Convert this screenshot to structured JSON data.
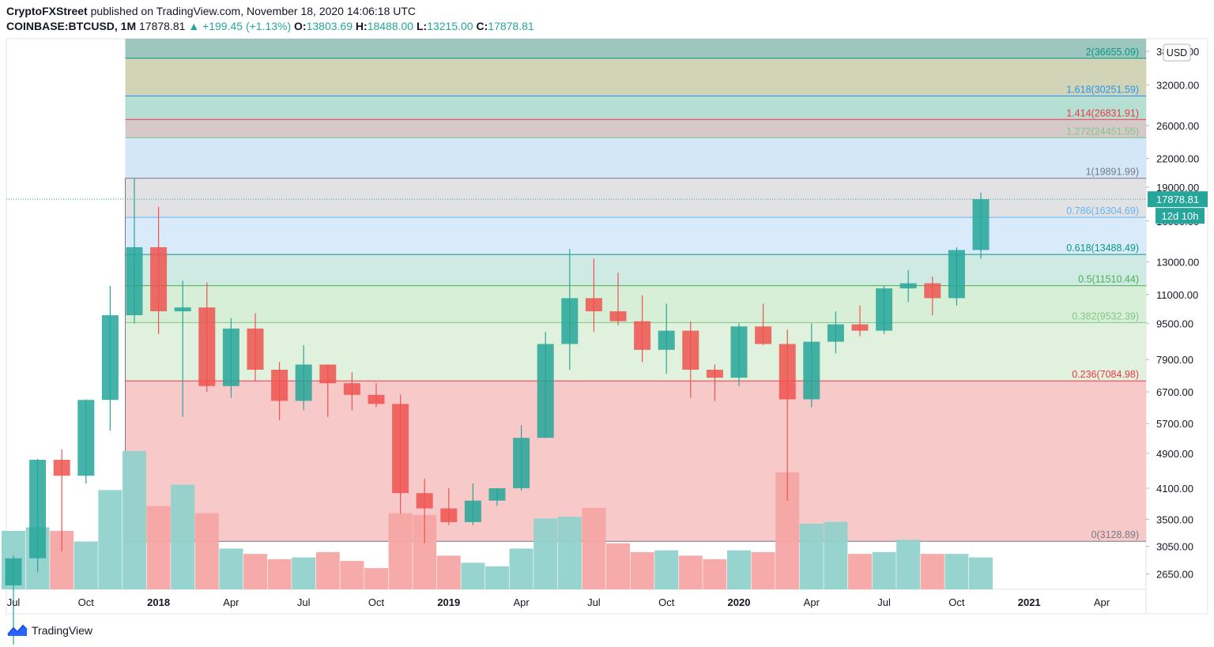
{
  "header": {
    "publisher": "CryptoFXStreet",
    "published_text": "published on TradingView.com, November 18, 2020 14:06:18 UTC",
    "symbol": "COINBASE:BTCUSD, 1M",
    "last": "17878.81",
    "change": "+199.45 (+1.13%)",
    "open_label": "O:",
    "open": "13803.69",
    "high_label": "H:",
    "high": "18488.00",
    "low_label": "L:",
    "low": "13215.00",
    "close_label": "C:",
    "close": "17878.81"
  },
  "footer": {
    "brand": "TradingView",
    "logo_icon": "tradingview-logo-icon"
  },
  "price_axis": {
    "currency": "USD",
    "current_price": "17878.81",
    "countdown": "12d 10h",
    "ticks": [
      "38000.00",
      "32000.00",
      "26000.00",
      "22000.00",
      "19000.00",
      "16000.00",
      "13000.00",
      "11000.00",
      "9500.00",
      "7900.00",
      "6700.00",
      "5700.00",
      "4900.00",
      "4100.00",
      "3500.00",
      "3050.00",
      "2650.00"
    ]
  },
  "colors": {
    "up": "#26a69a",
    "down": "#ef5350",
    "up_volume": "#92d2cc",
    "down_volume": "#f6a6a5",
    "axis_text": "#131722"
  },
  "chart_data": {
    "type": "candlestick",
    "scale": "log",
    "ylim": [
      2450,
      40500
    ],
    "x_axis_labels": [
      {
        "i": 0,
        "label": "Jul"
      },
      {
        "i": 3,
        "label": "Oct"
      },
      {
        "i": 6,
        "label": "2018"
      },
      {
        "i": 9,
        "label": "Apr"
      },
      {
        "i": 12,
        "label": "Jul"
      },
      {
        "i": 15,
        "label": "Oct"
      },
      {
        "i": 18,
        "label": "2019"
      },
      {
        "i": 21,
        "label": "Apr"
      },
      {
        "i": 24,
        "label": "Jul"
      },
      {
        "i": 27,
        "label": "Oct"
      },
      {
        "i": 30,
        "label": "2020"
      },
      {
        "i": 33,
        "label": "Apr"
      },
      {
        "i": 36,
        "label": "Jul"
      },
      {
        "i": 39,
        "label": "Oct"
      },
      {
        "i": 42,
        "label": "2021"
      },
      {
        "i": 45,
        "label": "Apr"
      }
    ],
    "candles": [
      {
        "month": "2017-07",
        "o": 2500,
        "h": 2920,
        "l": 1850,
        "c": 2870,
        "v": 0.33
      },
      {
        "month": "2017-08",
        "o": 2870,
        "h": 4760,
        "l": 2670,
        "c": 4740,
        "v": 0.35
      },
      {
        "month": "2017-09",
        "o": 4740,
        "h": 5000,
        "l": 2970,
        "c": 4370,
        "v": 0.33
      },
      {
        "month": "2017-10",
        "o": 4370,
        "h": 6450,
        "l": 4200,
        "c": 6430,
        "v": 0.27
      },
      {
        "month": "2017-11",
        "o": 6430,
        "h": 11500,
        "l": 5500,
        "c": 9900,
        "v": 0.56
      },
      {
        "month": "2017-12",
        "o": 9900,
        "h": 19890,
        "l": 9500,
        "c": 14000,
        "v": 0.78
      },
      {
        "month": "2018-01",
        "o": 14000,
        "h": 17200,
        "l": 9000,
        "c": 10100,
        "v": 0.47
      },
      {
        "month": "2018-02",
        "o": 10100,
        "h": 11800,
        "l": 5900,
        "c": 10300,
        "v": 0.59
      },
      {
        "month": "2018-03",
        "o": 10300,
        "h": 11700,
        "l": 6700,
        "c": 6900,
        "v": 0.43
      },
      {
        "month": "2018-04",
        "o": 6900,
        "h": 9750,
        "l": 6500,
        "c": 9250,
        "v": 0.23
      },
      {
        "month": "2018-05",
        "o": 9250,
        "h": 10000,
        "l": 7100,
        "c": 7500,
        "v": 0.2
      },
      {
        "month": "2018-06",
        "o": 7500,
        "h": 7800,
        "l": 5800,
        "c": 6400,
        "v": 0.17
      },
      {
        "month": "2018-07",
        "o": 6400,
        "h": 8500,
        "l": 6100,
        "c": 7700,
        "v": 0.18
      },
      {
        "month": "2018-08",
        "o": 7700,
        "h": 7700,
        "l": 5900,
        "c": 7000,
        "v": 0.21
      },
      {
        "month": "2018-09",
        "o": 7000,
        "h": 7400,
        "l": 6100,
        "c": 6600,
        "v": 0.16
      },
      {
        "month": "2018-10",
        "o": 6600,
        "h": 7000,
        "l": 6200,
        "c": 6300,
        "v": 0.12
      },
      {
        "month": "2018-11",
        "o": 6300,
        "h": 6600,
        "l": 3600,
        "c": 4000,
        "v": 0.43
      },
      {
        "month": "2018-12",
        "o": 4000,
        "h": 4300,
        "l": 3100,
        "c": 3700,
        "v": 0.42
      },
      {
        "month": "2019-01",
        "o": 3700,
        "h": 4100,
        "l": 3400,
        "c": 3450,
        "v": 0.19
      },
      {
        "month": "2019-02",
        "o": 3450,
        "h": 4200,
        "l": 3400,
        "c": 3850,
        "v": 0.15
      },
      {
        "month": "2019-03",
        "o": 3850,
        "h": 4100,
        "l": 3750,
        "c": 4100,
        "v": 0.13
      },
      {
        "month": "2019-04",
        "o": 4100,
        "h": 5650,
        "l": 4050,
        "c": 5300,
        "v": 0.23
      },
      {
        "month": "2019-05",
        "o": 5300,
        "h": 9100,
        "l": 5300,
        "c": 8550,
        "v": 0.4
      },
      {
        "month": "2019-06",
        "o": 8550,
        "h": 13880,
        "l": 7500,
        "c": 10800,
        "v": 0.41
      },
      {
        "month": "2019-07",
        "o": 10800,
        "h": 13200,
        "l": 9100,
        "c": 10100,
        "v": 0.46
      },
      {
        "month": "2019-08",
        "o": 10100,
        "h": 12300,
        "l": 9400,
        "c": 9600,
        "v": 0.26
      },
      {
        "month": "2019-09",
        "o": 9600,
        "h": 10950,
        "l": 7800,
        "c": 8300,
        "v": 0.21
      },
      {
        "month": "2019-10",
        "o": 8300,
        "h": 10500,
        "l": 7350,
        "c": 9150,
        "v": 0.22
      },
      {
        "month": "2019-11",
        "o": 9150,
        "h": 9600,
        "l": 6500,
        "c": 7500,
        "v": 0.19
      },
      {
        "month": "2019-12",
        "o": 7500,
        "h": 7700,
        "l": 6400,
        "c": 7200,
        "v": 0.17
      },
      {
        "month": "2020-01",
        "o": 7200,
        "h": 9500,
        "l": 6900,
        "c": 9350,
        "v": 0.22
      },
      {
        "month": "2020-02",
        "o": 9350,
        "h": 10500,
        "l": 8500,
        "c": 8550,
        "v": 0.21
      },
      {
        "month": "2020-03",
        "o": 8550,
        "h": 9200,
        "l": 3850,
        "c": 6450,
        "v": 0.66
      },
      {
        "month": "2020-04",
        "o": 6450,
        "h": 9500,
        "l": 6200,
        "c": 8650,
        "v": 0.37
      },
      {
        "month": "2020-05",
        "o": 8650,
        "h": 10100,
        "l": 8150,
        "c": 9450,
        "v": 0.38
      },
      {
        "month": "2020-06",
        "o": 9450,
        "h": 10400,
        "l": 8900,
        "c": 9150,
        "v": 0.2
      },
      {
        "month": "2020-07",
        "o": 9150,
        "h": 11500,
        "l": 9000,
        "c": 11350,
        "v": 0.21
      },
      {
        "month": "2020-08",
        "o": 11350,
        "h": 12450,
        "l": 10600,
        "c": 11650,
        "v": 0.28
      },
      {
        "month": "2020-09",
        "o": 11650,
        "h": 12050,
        "l": 9900,
        "c": 10800,
        "v": 0.2
      },
      {
        "month": "2020-10",
        "o": 10800,
        "h": 14000,
        "l": 10400,
        "c": 13800,
        "v": 0.2
      },
      {
        "month": "2020-11",
        "o": 13800,
        "h": 18488,
        "l": 13215,
        "c": 17879,
        "v": 0.18
      }
    ],
    "fibonacci": {
      "x_start_index": 5,
      "levels": [
        {
          "ratio": "0",
          "price": 3128.89,
          "label": "0(3128.89)",
          "line": "#787b86",
          "text": "#787b86",
          "fill": null
        },
        {
          "ratio": "0.236",
          "price": 7084.98,
          "label": "0.236(7084.98)",
          "line": "#f23645",
          "text": "#f23645",
          "fill": "#f7c9c9"
        },
        {
          "ratio": "0.382",
          "price": 9532.39,
          "label": "0.382(9532.39)",
          "line": "#81c784",
          "text": "#81c784",
          "fill": "#e0f2dd"
        },
        {
          "ratio": "0.5",
          "price": 11510.44,
          "label": "0.5(11510.44)",
          "line": "#4caf50",
          "text": "#4caf50",
          "fill": "#d8efd7"
        },
        {
          "ratio": "0.618",
          "price": 13488.49,
          "label": "0.618(13488.49)",
          "line": "#089981",
          "text": "#089981",
          "fill": "#cfe9e3"
        },
        {
          "ratio": "0.786",
          "price": 16304.69,
          "label": "0.786(16304.69)",
          "line": "#64b5f6",
          "text": "#64b5f6",
          "fill": "#d9ebfb"
        },
        {
          "ratio": "1",
          "price": 19891.99,
          "label": "1(19891.99)",
          "line": "#787b86",
          "text": "#787b86",
          "fill": "#e2e2e4"
        },
        {
          "ratio": "1.272",
          "price": 24451.55,
          "label": "1.272(24451.55)",
          "line": "#81c784",
          "text": "#81c784",
          "fill": "#d3e7f9"
        },
        {
          "ratio": "1.414",
          "price": 26831.91,
          "label": "1.414(26831.91)",
          "line": "#f23645",
          "text": "#f23645",
          "fill": "#d6c9c9"
        },
        {
          "ratio": "1.618",
          "price": 30251.59,
          "label": "1.618(30251.59)",
          "line": "#2196f3",
          "text": "#2196f3",
          "fill": "#b5dfd3"
        },
        {
          "ratio": "2",
          "price": 36655.09,
          "label": "2(36655.09)",
          "line": "#089981",
          "text": "#089981",
          "fill": "#d2d4b8"
        }
      ],
      "top_fill": "#9cc6be"
    }
  }
}
